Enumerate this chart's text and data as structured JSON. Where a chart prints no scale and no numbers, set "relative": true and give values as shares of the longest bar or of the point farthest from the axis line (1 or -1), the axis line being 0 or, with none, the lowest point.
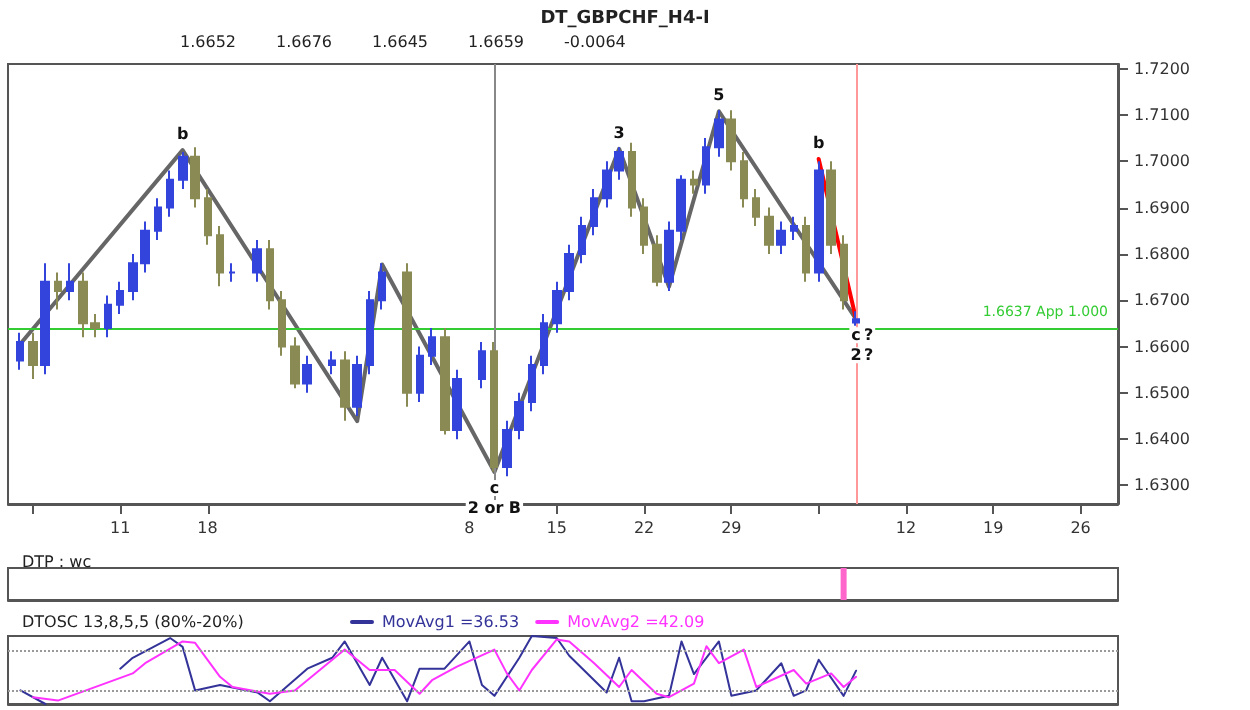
{
  "chart_data": [
    {
      "type": "candlestick",
      "title": "DT_GBPCHF_H4-I",
      "x": [
        "--07-03",
        "--07-04",
        "--07-05",
        "--07-06",
        "--07-07",
        "--07-08",
        "--07-09",
        "--07-10",
        "--07-11",
        "--07-12",
        "--07-13",
        "--07-14",
        "--07-15",
        "--07-16",
        "--07-17",
        "--07-18",
        "--07-19",
        "--07-20",
        "--07-22",
        "--07-23",
        "--07-24",
        "--07-25",
        "--07-26",
        "--07-28",
        "--07-29",
        "--07-30",
        "--07-31",
        "--08-01",
        "--08-03",
        "--08-04",
        "--08-05",
        "--08-06",
        "--08-07",
        "--08-09",
        "--08-10",
        "--08-11",
        "--08-12",
        "--08-13",
        "--08-14",
        "--08-15",
        "--08-16",
        "--08-17",
        "--08-18",
        "--08-19",
        "--08-20",
        "--08-21",
        "--08-22",
        "--08-23",
        "--08-24",
        "--08-25",
        "--08-26",
        "--08-27",
        "--08-28",
        "--08-29",
        "--08-30",
        "--08-31",
        "--09-01",
        "--09-02",
        "--09-03",
        "--09-04",
        "--09-05",
        "--09-06",
        "--09-07",
        "--09-08"
      ],
      "ohlc": [
        [
          1.657,
          1.663,
          1.655,
          1.661
        ],
        [
          1.661,
          1.663,
          1.653,
          1.656
        ],
        [
          1.656,
          1.678,
          1.654,
          1.674
        ],
        [
          1.674,
          1.676,
          1.668,
          1.672
        ],
        [
          1.672,
          1.678,
          1.67,
          1.674
        ],
        [
          1.674,
          1.676,
          1.662,
          1.665
        ],
        [
          1.665,
          1.667,
          1.662,
          1.664
        ],
        [
          1.664,
          1.671,
          1.662,
          1.669
        ],
        [
          1.669,
          1.674,
          1.667,
          1.672
        ],
        [
          1.672,
          1.68,
          1.67,
          1.678
        ],
        [
          1.678,
          1.687,
          1.676,
          1.685
        ],
        [
          1.685,
          1.692,
          1.683,
          1.69
        ],
        [
          1.69,
          1.698,
          1.688,
          1.696
        ],
        [
          1.696,
          1.702,
          1.694,
          1.701
        ],
        [
          1.701,
          1.703,
          1.69,
          1.692
        ],
        [
          1.692,
          1.694,
          1.682,
          1.684
        ],
        [
          1.684,
          1.686,
          1.673,
          1.676
        ],
        [
          1.676,
          1.678,
          1.674,
          1.676
        ],
        [
          1.676,
          1.683,
          1.674,
          1.681
        ],
        [
          1.681,
          1.683,
          1.668,
          1.67
        ],
        [
          1.67,
          1.672,
          1.658,
          1.66
        ],
        [
          1.66,
          1.662,
          1.651,
          1.652
        ],
        [
          1.652,
          1.658,
          1.65,
          1.656
        ],
        [
          1.656,
          1.659,
          1.654,
          1.657
        ],
        [
          1.657,
          1.659,
          1.644,
          1.647
        ],
        [
          1.647,
          1.658,
          1.645,
          1.656
        ],
        [
          1.656,
          1.672,
          1.654,
          1.67
        ],
        [
          1.67,
          1.678,
          1.668,
          1.676
        ],
        [
          1.676,
          1.678,
          1.647,
          1.65
        ],
        [
          1.65,
          1.66,
          1.648,
          1.658
        ],
        [
          1.658,
          1.664,
          1.656,
          1.662
        ],
        [
          1.662,
          1.664,
          1.641,
          1.642
        ],
        [
          1.642,
          1.655,
          1.64,
          1.653
        ],
        [
          1.653,
          1.661,
          1.651,
          1.659
        ],
        [
          1.659,
          1.661,
          1.633,
          1.634
        ],
        [
          1.634,
          1.644,
          1.632,
          1.642
        ],
        [
          1.642,
          1.65,
          1.64,
          1.648
        ],
        [
          1.648,
          1.658,
          1.646,
          1.656
        ],
        [
          1.656,
          1.667,
          1.654,
          1.665
        ],
        [
          1.665,
          1.674,
          1.663,
          1.672
        ],
        [
          1.672,
          1.682,
          1.67,
          1.68
        ],
        [
          1.68,
          1.688,
          1.678,
          1.686
        ],
        [
          1.686,
          1.694,
          1.684,
          1.692
        ],
        [
          1.692,
          1.7,
          1.69,
          1.698
        ],
        [
          1.698,
          1.703,
          1.696,
          1.702
        ],
        [
          1.702,
          1.704,
          1.688,
          1.69
        ],
        [
          1.69,
          1.692,
          1.68,
          1.682
        ],
        [
          1.682,
          1.684,
          1.673,
          1.674
        ],
        [
          1.674,
          1.687,
          1.672,
          1.685
        ],
        [
          1.685,
          1.697,
          1.683,
          1.696
        ],
        [
          1.696,
          1.698,
          1.693,
          1.695
        ],
        [
          1.695,
          1.705,
          1.693,
          1.703
        ],
        [
          1.703,
          1.711,
          1.701,
          1.709
        ],
        [
          1.709,
          1.711,
          1.698,
          1.7
        ],
        [
          1.7,
          1.702,
          1.69,
          1.692
        ],
        [
          1.692,
          1.694,
          1.686,
          1.688
        ],
        [
          1.688,
          1.69,
          1.68,
          1.682
        ],
        [
          1.682,
          1.687,
          1.68,
          1.685
        ],
        [
          1.685,
          1.688,
          1.683,
          1.686
        ],
        [
          1.686,
          1.688,
          1.674,
          1.676
        ],
        [
          1.676,
          1.7,
          1.674,
          1.698
        ],
        [
          1.698,
          1.7,
          1.68,
          1.682
        ],
        [
          1.682,
          1.684,
          1.668,
          1.67
        ],
        [
          1.6652,
          1.6676,
          1.6645,
          1.6659
        ]
      ],
      "series": [
        {
          "type": "line",
          "color": "#666666",
          "x": [
            "--07-03",
            "--07-16",
            "--07-30",
            "--08-01",
            "--08-10",
            "--08-20",
            "--08-24",
            "--08-28",
            "--09-08"
          ],
          "values": [
            1.6606,
            1.7024,
            1.6439,
            1.6777,
            1.6329,
            1.7027,
            1.6729,
            1.7108,
            1.6659
          ]
        },
        {
          "type": "line",
          "color": "#ff0000",
          "x": [
            "--09-05",
            "--09-08"
          ],
          "values": [
            1.7005,
            1.6659
          ]
        }
      ],
      "xlim": [
        "--07-02",
        "--09-29"
      ],
      "xticks": [
        {
          "value": "--07-04",
          "label": null
        },
        {
          "value": "--07-11",
          "label": "11"
        },
        {
          "value": "--07-18",
          "label": "18"
        },
        {
          "value": "--08-08",
          "label": "8"
        },
        {
          "value": "--08-15",
          "label": "15"
        },
        {
          "value": "--08-22",
          "label": "22"
        },
        {
          "value": "--08-29",
          "label": "29"
        },
        {
          "value": "--09-05",
          "label": null
        },
        {
          "value": "--09-12",
          "label": "12"
        },
        {
          "value": "--09-19",
          "label": "19"
        },
        {
          "value": "--09-26",
          "label": "26"
        }
      ],
      "ylim": [
        1.626,
        1.721
      ],
      "yticks": [
        {
          "value": 1.63,
          "label": "1.6300"
        },
        {
          "value": 1.64,
          "label": "1.6400"
        },
        {
          "value": 1.65,
          "label": "1.6500"
        },
        {
          "value": 1.66,
          "label": "1.6600"
        },
        {
          "value": 1.67,
          "label": "1.6700"
        },
        {
          "value": 1.68,
          "label": "1.6800"
        },
        {
          "value": 1.69,
          "label": "1.6900"
        },
        {
          "value": 1.7,
          "label": "1.7000"
        },
        {
          "value": 1.71,
          "label": "1.7100"
        },
        {
          "value": 1.72,
          "label": "1.7200"
        }
      ],
      "ref_lines": [
        {
          "axis": "y",
          "value": 1.6637,
          "label": "1.6637 App 1.000",
          "color": "#33cc33"
        },
        {
          "axis": "x",
          "value": "--09-08",
          "color": "#ff9999"
        },
        {
          "axis": "x",
          "value": "--08-10",
          "color": "#888888"
        }
      ],
      "annotations": [
        "1.6652",
        "1.6676",
        "1.6645",
        "1.6659",
        "-0.0064",
        {
          "text": "b",
          "x": "--07-16",
          "y": 1.7024
        },
        {
          "text": "c",
          "x": "--08-10",
          "y": 1.6329
        },
        {
          "text": "2 or B",
          "x": "--08-10",
          "y": 1.6329
        },
        {
          "text": "3",
          "x": "--08-20",
          "y": 1.7027
        },
        {
          "text": "5",
          "x": "--08-28",
          "y": 1.7108
        },
        {
          "text": "b",
          "x": "--09-05",
          "y": 1.7005
        },
        {
          "text": "c",
          "x": "--09-08",
          "y": 1.6659
        },
        {
          "text": "2",
          "x": "--09-08",
          "y": 1.6659
        },
        {
          "text": "?",
          "x": "--09-09",
          "y": 1.6659
        },
        {
          "text": "?",
          "x": "--09-09",
          "y": 1.6659
        }
      ]
    },
    {
      "type": "bar",
      "title": "DTP : wc",
      "relative": true,
      "x": [
        "--09-07"
      ],
      "values": [
        1
      ],
      "color": "#ff66cc",
      "xlim": [
        "--07-02",
        "--09-29"
      ]
    },
    {
      "type": "line",
      "title": "DTOSC 13,8,5,5 (80%-20%)",
      "relative": true,
      "xlim": [
        "--07-02",
        "--09-29"
      ],
      "legend": "top left",
      "series": [
        {
          "name": "MovAvg1 =36.53",
          "color": "#333399",
          "x": [
            "--07-03",
            "--07-05",
            "--07-07",
            "--07-11",
            "--07-12",
            "--07-15",
            "--07-16",
            "--07-17",
            "--07-19",
            "--07-22",
            "--07-23",
            "--07-26",
            "--07-28",
            "--07-29",
            "--07-31",
            "--08-01",
            "--08-03",
            "--08-04",
            "--08-06",
            "--08-08",
            "--08-09",
            "--08-10",
            "--08-12",
            "--08-13",
            "--08-15",
            "--08-16",
            "--08-19",
            "--08-20",
            "--08-21",
            "--08-22",
            "--08-24",
            "--08-25",
            "--08-26",
            "--08-28",
            "--08-29",
            "--08-31",
            "--09-02",
            "--09-03",
            "--09-04",
            "--09-05",
            "--09-07",
            "--09-08"
          ],
          "values": [
            0.2,
            0,
            null,
            0.52,
            0.68,
            0.97,
            0.84,
            0.2,
            0.28,
            0.17,
            0.04,
            0.52,
            0.68,
            0.92,
            0.28,
            0.68,
            0.04,
            0.52,
            0.52,
            0.92,
            0.28,
            0.12,
            0.68,
            1.0,
            0.97,
            0.71,
            0.17,
            0.68,
            0.04,
            0.04,
            0.12,
            0.92,
            0.44,
            0.92,
            0.12,
            0.2,
            0.6,
            0.12,
            0.2,
            0.65,
            0.12,
            0.49
          ]
        },
        {
          "name": "MovAvg2 =42.09",
          "color": "#ff33ff",
          "x": [
            "--07-04",
            "--07-06",
            "--07-12",
            "--07-13",
            "--07-16",
            "--07-17",
            "--07-19",
            "--07-20",
            "--07-23",
            "--07-25",
            "--07-27",
            "--07-29",
            "--07-31",
            "--08-02",
            "--08-04",
            "--08-05",
            "--08-07",
            "--08-10",
            "--08-11",
            "--08-12",
            "--08-13",
            "--08-15",
            "--08-16",
            "--08-18",
            "--08-20",
            "--08-21",
            "--08-23",
            "--08-24",
            "--08-26",
            "--08-27",
            "--08-28",
            "--08-30",
            "--08-31",
            "--09-03",
            "--09-04",
            "--09-06",
            "--09-07",
            "--09-08"
          ],
          "values": [
            0.1,
            0.05,
            0.45,
            0.6,
            0.92,
            0.9,
            0.4,
            0.25,
            0.15,
            0.2,
            0.5,
            0.8,
            0.5,
            0.5,
            0.15,
            0.35,
            0.55,
            0.8,
            0.45,
            0.2,
            0.5,
            0.95,
            0.92,
            0.6,
            0.25,
            0.5,
            0.15,
            0.1,
            0.3,
            0.85,
            0.6,
            0.8,
            0.25,
            0.5,
            0.3,
            0.45,
            0.25,
            0.4
          ]
        }
      ],
      "ref_lines": [
        {
          "axis": "y",
          "value": 0.8,
          "color": "#999999",
          "line_style": "dotted"
        },
        {
          "axis": "y",
          "value": 0.2,
          "color": "#999999",
          "line_style": "dotted"
        }
      ]
    }
  ]
}
